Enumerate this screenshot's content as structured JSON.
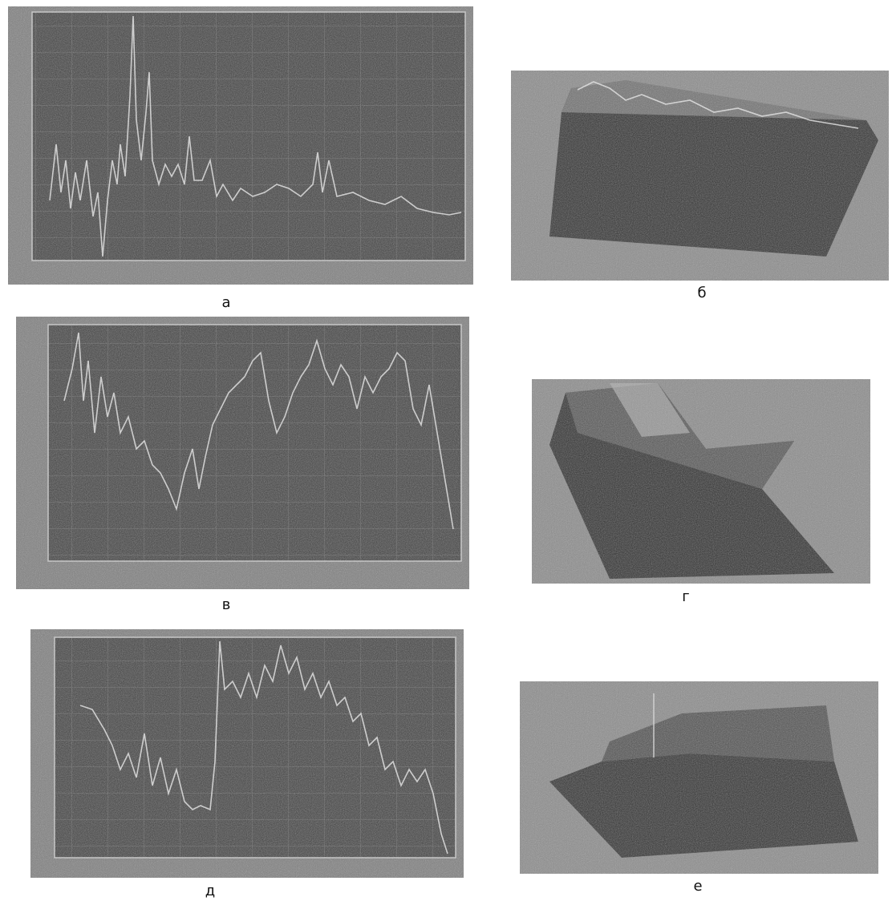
{
  "panels": [
    {
      "label": "а"
    },
    {
      "label": "б"
    },
    {
      "label": "в"
    },
    {
      "label": "г"
    },
    {
      "label": "д"
    },
    {
      "label": "е"
    }
  ]
}
